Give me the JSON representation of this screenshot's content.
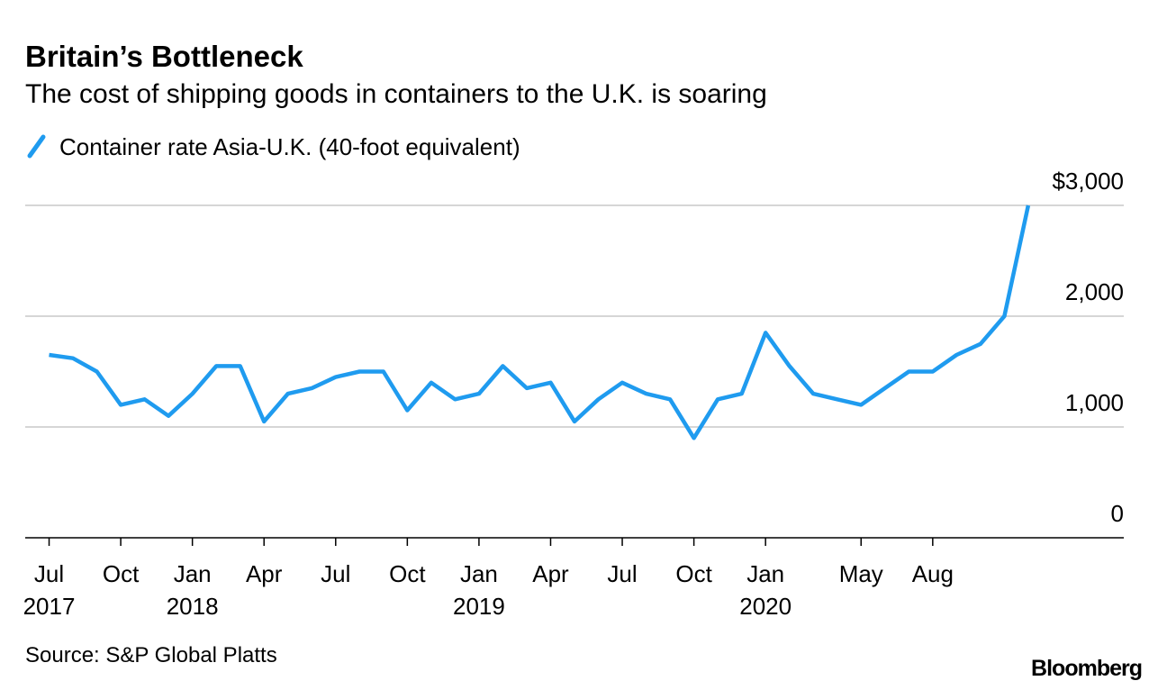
{
  "chart_data": {
    "type": "line",
    "title": "Britain’s Bottleneck",
    "subtitle": "The cost of shipping goods in containers to the U.K. is soaring",
    "source": "Source: S&P Global Platts",
    "brand": "Bloomberg",
    "x": [
      "2017-07",
      "2017-08",
      "2017-09",
      "2017-10",
      "2017-11",
      "2017-12",
      "2018-01",
      "2018-02",
      "2018-03",
      "2018-04",
      "2018-05",
      "2018-06",
      "2018-07",
      "2018-08",
      "2018-09",
      "2018-10",
      "2018-11",
      "2018-12",
      "2019-01",
      "2019-02",
      "2019-03",
      "2019-04",
      "2019-05",
      "2019-06",
      "2019-07",
      "2019-08",
      "2019-09",
      "2019-10",
      "2019-11",
      "2019-12",
      "2020-01",
      "2020-02",
      "2020-03",
      "2020-04",
      "2020-05",
      "2020-06",
      "2020-07",
      "2020-08",
      "2020-09",
      "2020-10",
      "2020-11",
      "2020-12"
    ],
    "series": [
      {
        "name": "Container rate Asia-U.K. (40-foot equivalent)",
        "color": "#1f9bef",
        "values": [
          1650,
          1620,
          1500,
          1200,
          1250,
          1100,
          1300,
          1550,
          1550,
          1050,
          1300,
          1350,
          1450,
          1500,
          1500,
          1150,
          1400,
          1250,
          1300,
          1550,
          1350,
          1400,
          1050,
          1250,
          1400,
          1300,
          1250,
          900,
          1250,
          1300,
          1850,
          1550,
          1300,
          1250,
          1200,
          1350,
          1500,
          1500,
          1650,
          1750,
          2000,
          3000
        ]
      }
    ],
    "xlim": [
      "2017-06",
      "2021-04"
    ],
    "xticks": [
      {
        "value": "2017-07",
        "label": [
          "Jul",
          "2017"
        ]
      },
      {
        "value": "2017-10",
        "label": [
          "Oct"
        ]
      },
      {
        "value": "2018-01",
        "label": [
          "Jan",
          "2018"
        ]
      },
      {
        "value": "2018-04",
        "label": [
          "Apr"
        ]
      },
      {
        "value": "2018-07",
        "label": [
          "Jul"
        ]
      },
      {
        "value": "2018-10",
        "label": [
          "Oct"
        ]
      },
      {
        "value": "2019-01",
        "label": [
          "Jan",
          "2019"
        ]
      },
      {
        "value": "2019-04",
        "label": [
          "Apr"
        ]
      },
      {
        "value": "2019-07",
        "label": [
          "Jul"
        ]
      },
      {
        "value": "2019-10",
        "label": [
          "Oct"
        ]
      },
      {
        "value": "2020-01",
        "label": [
          "Jan",
          "2020"
        ]
      },
      {
        "value": "2020-05",
        "label": [
          "May"
        ]
      },
      {
        "value": "2020-08",
        "label": [
          "Aug"
        ]
      }
    ],
    "ylim": [
      0,
      3000
    ],
    "yticks": [
      0,
      {
        "value": 1000,
        "label": "1,000"
      },
      {
        "value": 2000,
        "label": "2,000"
      },
      {
        "value": 3000,
        "label": "$3,000"
      }
    ],
    "grid": true
  }
}
